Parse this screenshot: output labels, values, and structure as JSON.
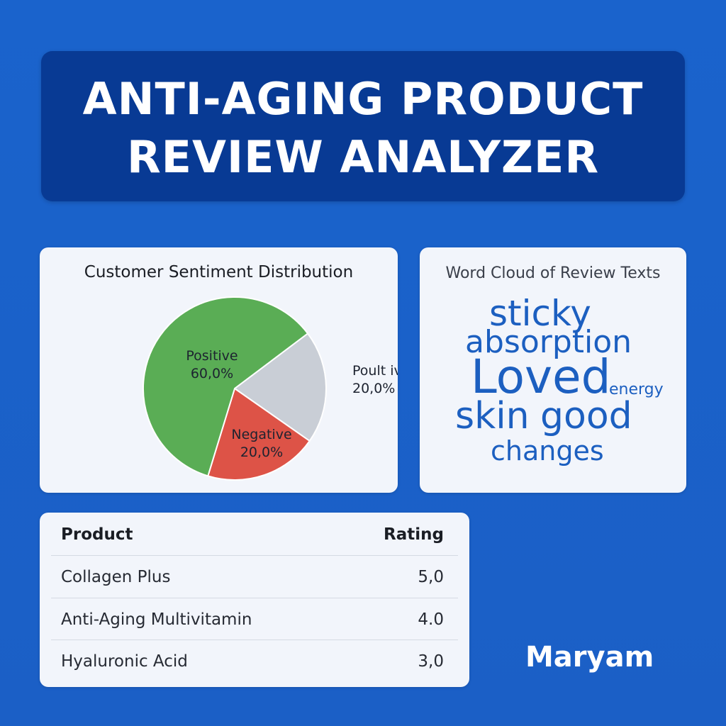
{
  "banner": {
    "line1": "ANTI-AGING PRODUCT",
    "line2": "REVIEW ANALYZER"
  },
  "sentiment_card": {
    "title": "Customer Sentiment Distribution"
  },
  "cloud_card": {
    "title": "Word Cloud of Review Texts",
    "words": [
      "sticky",
      "absorption",
      "Loved",
      "energy",
      "skin",
      "good",
      "changes"
    ]
  },
  "table": {
    "headers": {
      "product": "Product",
      "rating": "Rating"
    },
    "rows": [
      {
        "product": "Collagen Plus",
        "rating": "5,0"
      },
      {
        "product": "Anti-Aging Multivitamin",
        "rating": "4.0"
      },
      {
        "product": "Hyaluronic Acid",
        "rating": "3,0"
      }
    ]
  },
  "signature": "Maryam",
  "chart_data": {
    "type": "pie",
    "title": "Customer Sentiment Distribution",
    "slices": [
      {
        "label": "Positive",
        "pct_label": "60,0%",
        "value": 60.0,
        "color": "#5aad55"
      },
      {
        "label": "Poult ive",
        "pct_label": "20,0%",
        "value": 20.0,
        "color": "#c9ced6"
      },
      {
        "label": "Negative",
        "pct_label": "20,0%",
        "value": 20.0,
        "color": "#dd5347"
      }
    ]
  },
  "colors": {
    "background": "#1a63cc",
    "banner": "#083a94",
    "card": "#f2f5fb",
    "cloud_text": "#1c5fc0"
  }
}
